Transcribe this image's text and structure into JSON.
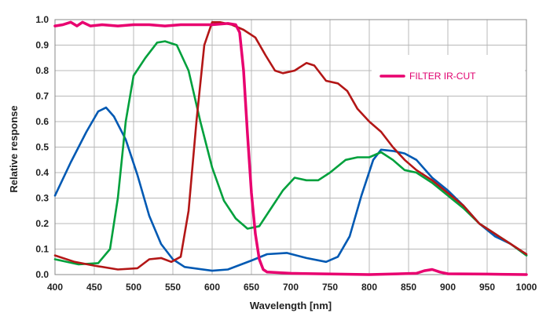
{
  "chart_data": {
    "type": "line",
    "title": "",
    "xlabel": "Wavelength [nm]",
    "ylabel": "Relative response",
    "xlim": [
      400,
      1000
    ],
    "ylim": [
      0.0,
      1.0
    ],
    "x_ticks": [
      "400",
      "450",
      "500",
      "550",
      "600",
      "650",
      "700",
      "750",
      "800",
      "850",
      "900",
      "950",
      "1000"
    ],
    "y_ticks": [
      "0.0",
      "0.1",
      "0.2",
      "0.3",
      "0.4",
      "0.5",
      "0.6",
      "0.7",
      "0.8",
      "0.9",
      "1.0"
    ],
    "grid": true,
    "legend": {
      "placement": "top-right",
      "entries": [
        {
          "label": "FILTER IR-CUT",
          "color": "#e8006f"
        }
      ]
    },
    "series": [
      {
        "color": "#0059b3",
        "points": [
          [
            400,
            0.31
          ],
          [
            420,
            0.44
          ],
          [
            440,
            0.56
          ],
          [
            455,
            0.64
          ],
          [
            465,
            0.655
          ],
          [
            475,
            0.62
          ],
          [
            490,
            0.53
          ],
          [
            505,
            0.39
          ],
          [
            520,
            0.23
          ],
          [
            535,
            0.12
          ],
          [
            550,
            0.06
          ],
          [
            565,
            0.03
          ],
          [
            600,
            0.015
          ],
          [
            620,
            0.02
          ],
          [
            650,
            0.055
          ],
          [
            670,
            0.08
          ],
          [
            695,
            0.085
          ],
          [
            720,
            0.065
          ],
          [
            745,
            0.05
          ],
          [
            760,
            0.07
          ],
          [
            775,
            0.15
          ],
          [
            790,
            0.31
          ],
          [
            805,
            0.45
          ],
          [
            815,
            0.49
          ],
          [
            830,
            0.485
          ],
          [
            845,
            0.475
          ],
          [
            860,
            0.45
          ],
          [
            880,
            0.38
          ],
          [
            900,
            0.33
          ],
          [
            920,
            0.27
          ],
          [
            940,
            0.2
          ],
          [
            960,
            0.15
          ],
          [
            980,
            0.12
          ],
          [
            1000,
            0.075
          ]
        ]
      },
      {
        "color": "#00a03c",
        "points": [
          [
            400,
            0.06
          ],
          [
            430,
            0.04
          ],
          [
            455,
            0.045
          ],
          [
            470,
            0.1
          ],
          [
            480,
            0.3
          ],
          [
            490,
            0.6
          ],
          [
            500,
            0.78
          ],
          [
            515,
            0.85
          ],
          [
            530,
            0.91
          ],
          [
            540,
            0.915
          ],
          [
            555,
            0.9
          ],
          [
            570,
            0.8
          ],
          [
            585,
            0.6
          ],
          [
            600,
            0.42
          ],
          [
            615,
            0.29
          ],
          [
            630,
            0.22
          ],
          [
            645,
            0.18
          ],
          [
            660,
            0.19
          ],
          [
            675,
            0.26
          ],
          [
            690,
            0.33
          ],
          [
            705,
            0.38
          ],
          [
            720,
            0.37
          ],
          [
            735,
            0.37
          ],
          [
            750,
            0.4
          ],
          [
            770,
            0.45
          ],
          [
            785,
            0.46
          ],
          [
            800,
            0.46
          ],
          [
            815,
            0.48
          ],
          [
            830,
            0.45
          ],
          [
            845,
            0.41
          ],
          [
            860,
            0.4
          ],
          [
            880,
            0.36
          ],
          [
            900,
            0.31
          ],
          [
            920,
            0.26
          ],
          [
            940,
            0.2
          ],
          [
            960,
            0.16
          ],
          [
            980,
            0.12
          ],
          [
            1000,
            0.075
          ]
        ]
      },
      {
        "color": "#b31616",
        "points": [
          [
            400,
            0.075
          ],
          [
            425,
            0.05
          ],
          [
            450,
            0.035
          ],
          [
            480,
            0.02
          ],
          [
            505,
            0.025
          ],
          [
            520,
            0.06
          ],
          [
            535,
            0.065
          ],
          [
            548,
            0.05
          ],
          [
            560,
            0.07
          ],
          [
            570,
            0.25
          ],
          [
            580,
            0.6
          ],
          [
            590,
            0.9
          ],
          [
            600,
            0.99
          ],
          [
            610,
            0.99
          ],
          [
            625,
            0.98
          ],
          [
            640,
            0.96
          ],
          [
            655,
            0.93
          ],
          [
            668,
            0.86
          ],
          [
            680,
            0.8
          ],
          [
            690,
            0.79
          ],
          [
            705,
            0.8
          ],
          [
            720,
            0.83
          ],
          [
            730,
            0.82
          ],
          [
            745,
            0.76
          ],
          [
            760,
            0.75
          ],
          [
            772,
            0.72
          ],
          [
            785,
            0.65
          ],
          [
            800,
            0.6
          ],
          [
            815,
            0.56
          ],
          [
            830,
            0.5
          ],
          [
            845,
            0.45
          ],
          [
            860,
            0.41
          ],
          [
            880,
            0.37
          ],
          [
            900,
            0.32
          ],
          [
            920,
            0.27
          ],
          [
            940,
            0.2
          ],
          [
            960,
            0.16
          ],
          [
            980,
            0.12
          ],
          [
            1000,
            0.08
          ]
        ]
      },
      {
        "name": "FILTER IR-CUT",
        "color": "#e8006f",
        "points": [
          [
            400,
            0.975
          ],
          [
            410,
            0.98
          ],
          [
            420,
            0.99
          ],
          [
            428,
            0.975
          ],
          [
            435,
            0.99
          ],
          [
            445,
            0.975
          ],
          [
            460,
            0.98
          ],
          [
            480,
            0.975
          ],
          [
            500,
            0.98
          ],
          [
            520,
            0.98
          ],
          [
            540,
            0.975
          ],
          [
            560,
            0.98
          ],
          [
            580,
            0.98
          ],
          [
            600,
            0.98
          ],
          [
            620,
            0.985
          ],
          [
            630,
            0.98
          ],
          [
            635,
            0.95
          ],
          [
            640,
            0.8
          ],
          [
            645,
            0.55
          ],
          [
            650,
            0.32
          ],
          [
            655,
            0.16
          ],
          [
            660,
            0.06
          ],
          [
            665,
            0.02
          ],
          [
            670,
            0.01
          ],
          [
            700,
            0.005
          ],
          [
            800,
            0.0
          ],
          [
            860,
            0.005
          ],
          [
            870,
            0.015
          ],
          [
            880,
            0.02
          ],
          [
            890,
            0.01
          ],
          [
            900,
            0.003
          ],
          [
            950,
            0.002
          ],
          [
            1000,
            0.0
          ]
        ]
      }
    ]
  }
}
